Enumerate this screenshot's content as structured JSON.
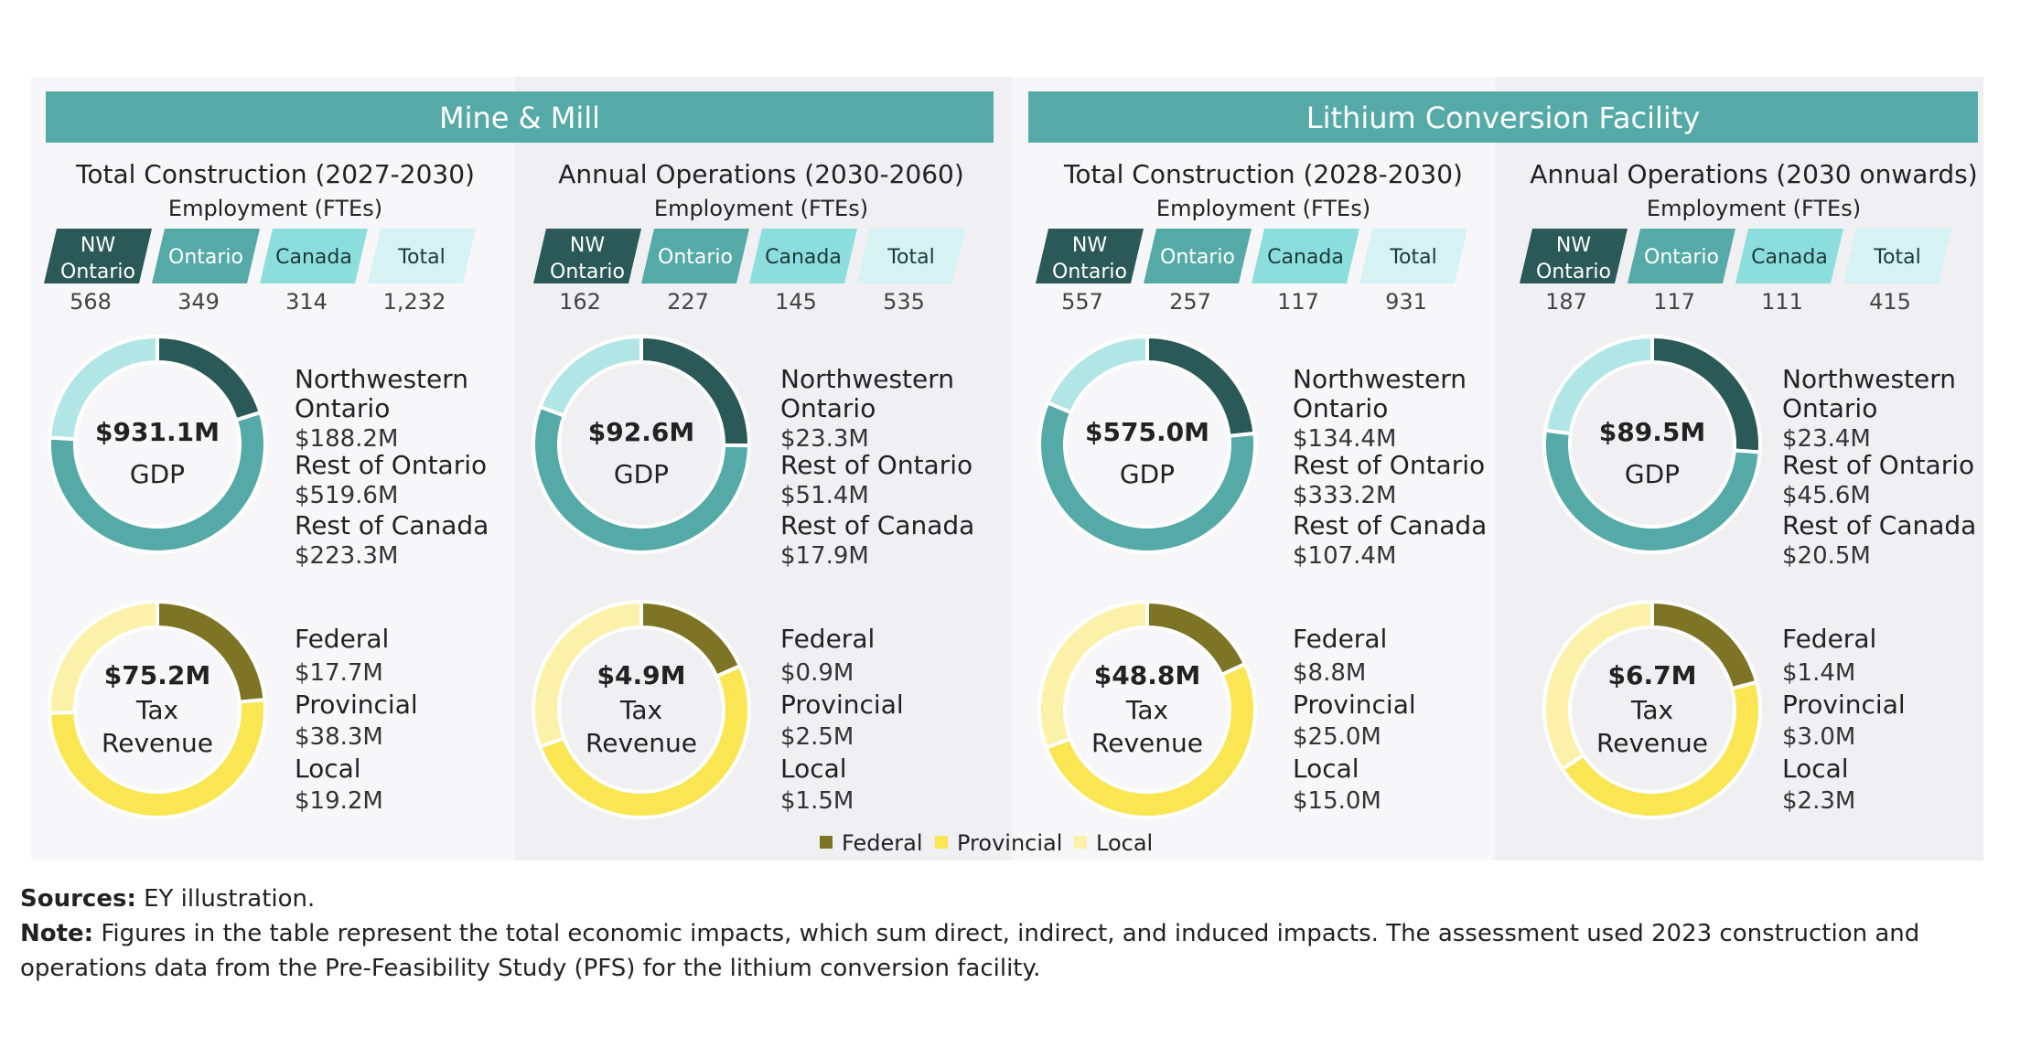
{
  "colors": {
    "header_bg": "#55aaa8",
    "nw_ontario": "#2a5957",
    "ontario": "#55aaa8",
    "canada": "#8cdedd",
    "total": "#d6f2f2",
    "gdp_nw": "#2a5957",
    "gdp_rest_ontario": "#55aaa8",
    "gdp_rest_canada": "#b2e6e6",
    "tax_federal": "#7d7425",
    "tax_provincial": "#fae552",
    "tax_local": "#fbf1a8"
  },
  "groups": [
    {
      "title": "Mine & Mill"
    },
    {
      "title": "Lithium Conversion Facility"
    }
  ],
  "employment_sub": "Employment (FTEs)",
  "employment_labels": [
    [
      "NW",
      "Ontario"
    ],
    [
      "Ontario"
    ],
    [
      "Canada"
    ],
    [
      "Total"
    ]
  ],
  "chart_data": [
    {
      "type": "pie",
      "title": "Total Construction (2027-2030)",
      "employment": {
        "categories": [
          "NW Ontario",
          "Ontario",
          "Canada",
          "Total"
        ],
        "values": [
          "568",
          "349",
          "314",
          "1,232"
        ]
      },
      "gdp": {
        "total": "$931.1M",
        "label": "GDP",
        "categories": [
          "Northwestern Ontario",
          "Rest of Ontario",
          "Rest of Canada"
        ],
        "values": [
          188.2,
          519.6,
          223.3
        ],
        "labels": [
          "$188.2M",
          "$519.6M",
          "$223.3M"
        ]
      },
      "tax": {
        "total": "$75.2M",
        "label": [
          "Tax",
          "Revenue"
        ],
        "categories": [
          "Federal",
          "Provincial",
          "Local"
        ],
        "values": [
          17.7,
          38.3,
          19.2
        ],
        "labels": [
          "$17.7M",
          "$38.3M",
          "$19.2M"
        ]
      }
    },
    {
      "type": "pie",
      "title": "Annual Operations (2030-2060)",
      "employment": {
        "categories": [
          "NW Ontario",
          "Ontario",
          "Canada",
          "Total"
        ],
        "values": [
          "162",
          "227",
          "145",
          "535"
        ]
      },
      "gdp": {
        "total": "$92.6M",
        "label": "GDP",
        "categories": [
          "Northwestern Ontario",
          "Rest of Ontario",
          "Rest of Canada"
        ],
        "values": [
          23.3,
          51.4,
          17.9
        ],
        "labels": [
          "$23.3M",
          "$51.4M",
          "$17.9M"
        ]
      },
      "tax": {
        "total": "$4.9M",
        "label": [
          "Tax",
          "Revenue"
        ],
        "categories": [
          "Federal",
          "Provincial",
          "Local"
        ],
        "values": [
          0.9,
          2.5,
          1.5
        ],
        "labels": [
          "$0.9M",
          "$2.5M",
          "$1.5M"
        ]
      }
    },
    {
      "type": "pie",
      "title": "Total Construction (2028-2030)",
      "employment": {
        "categories": [
          "NW Ontario",
          "Ontario",
          "Canada",
          "Total"
        ],
        "values": [
          "557",
          "257",
          "117",
          "931"
        ]
      },
      "gdp": {
        "total": "$575.0M",
        "label": "GDP",
        "categories": [
          "Northwestern Ontario",
          "Rest of Ontario",
          "Rest of Canada"
        ],
        "values": [
          134.4,
          333.2,
          107.4
        ],
        "labels": [
          "$134.4M",
          "$333.2M",
          "$107.4M"
        ]
      },
      "tax": {
        "total": "$48.8M",
        "label": [
          "Tax",
          "Revenue"
        ],
        "categories": [
          "Federal",
          "Provincial",
          "Local"
        ],
        "values": [
          8.8,
          25.0,
          15.0
        ],
        "labels": [
          "$8.8M",
          "$25.0M",
          "$15.0M"
        ]
      }
    },
    {
      "type": "pie",
      "title": "Annual Operations (2030 onwards)",
      "employment": {
        "categories": [
          "NW Ontario",
          "Ontario",
          "Canada",
          "Total"
        ],
        "values": [
          "187",
          "117",
          "111",
          "415"
        ]
      },
      "gdp": {
        "total": "$89.5M",
        "label": "GDP",
        "categories": [
          "Northwestern Ontario",
          "Rest of Ontario",
          "Rest of Canada"
        ],
        "values": [
          23.4,
          45.6,
          20.5
        ],
        "labels": [
          "$23.4M",
          "$45.6M",
          "$20.5M"
        ]
      },
      "tax": {
        "total": "$6.7M",
        "label": [
          "Tax",
          "Revenue"
        ],
        "categories": [
          "Federal",
          "Provincial",
          "Local"
        ],
        "values": [
          1.4,
          3.0,
          2.3
        ],
        "labels": [
          "$1.4M",
          "$3.0M",
          "$2.3M"
        ]
      }
    }
  ],
  "bd_lines": [
    [
      "Northwestern",
      "Ontario"
    ],
    [
      "Rest of Ontario"
    ],
    [
      "Rest of Canada"
    ]
  ],
  "legend": [
    "Federal",
    "Provincial",
    "Local"
  ],
  "notes": {
    "sources_label": "Sources:",
    "sources_text": " EY illustration.",
    "note_label": "Note:",
    "note_text": " Figures in the table represent the total economic impacts, which sum direct, indirect, and induced impacts. The assessment used 2023 construction and operations data from the Pre-Feasibility Study (PFS) for the lithium conversion facility."
  }
}
